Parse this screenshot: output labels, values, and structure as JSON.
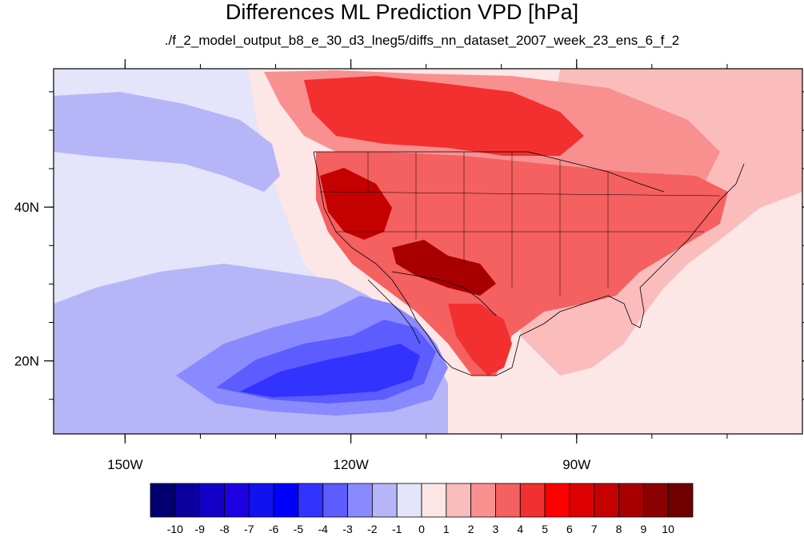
{
  "title": "Differences ML Prediction VPD [hPa]",
  "subtitle": "./f_2_model_output_b8_e_30_d3_lneg5/diffs_nn_dataset_2007_week_23_ens_6_f_2",
  "axes": {
    "x_ticks": [
      {
        "lon": -150,
        "label": "150W"
      },
      {
        "lon": -120,
        "label": "120W"
      },
      {
        "lon": -90,
        "label": "90W"
      }
    ],
    "y_ticks": [
      {
        "lat": 40,
        "label": "40N"
      },
      {
        "lat": 20,
        "label": "20N"
      }
    ],
    "lon_range": [
      -159.5,
      -60
    ],
    "lat_range": [
      10.5,
      58
    ]
  },
  "colorbar": {
    "levels": [
      "-10",
      "-9",
      "-8",
      "-7",
      "-6",
      "-5",
      "-4",
      "-3",
      "-2",
      "-1",
      "0",
      "1",
      "2",
      "3",
      "4",
      "5",
      "6",
      "7",
      "8",
      "9",
      "10"
    ],
    "colors": [
      "#020070",
      "#0a009e",
      "#1400c8",
      "#1e00e0",
      "#1212ee",
      "#0000ff",
      "#3333ff",
      "#5c5cff",
      "#8a8aff",
      "#b5b5f7",
      "#e4e4fa",
      "#fde6e6",
      "#fbbcbc",
      "#f89090",
      "#f56060",
      "#f23030",
      "#ff0000",
      "#dd0000",
      "#c40000",
      "#a80000",
      "#8b0000",
      "#700000"
    ]
  },
  "regions": [
    {
      "id": "pacific-background",
      "color": "#e4e4fa"
    },
    {
      "id": "north-pacific-blue",
      "color": "#b5b5f7"
    },
    {
      "id": "subtropical-pacific-blue",
      "color": "#b5b5f7"
    },
    {
      "id": "baja-offshore-blue",
      "color": "#8a8aff"
    },
    {
      "id": "baja-offshore-core",
      "color": "#5c5cff"
    },
    {
      "id": "baja-offshore-deep",
      "color": "#3333ff"
    },
    {
      "id": "canada-red",
      "color": "#f89090"
    },
    {
      "id": "canada-core",
      "color": "#f23030"
    },
    {
      "id": "us-red",
      "color": "#f56060"
    },
    {
      "id": "west-coast-deep",
      "color": "#c40000"
    },
    {
      "id": "southwest-deep",
      "color": "#a80000"
    },
    {
      "id": "mexico-red",
      "color": "#f23030"
    },
    {
      "id": "east-atlantic-pink",
      "color": "#fbbcbc"
    },
    {
      "id": "atlantic-pink",
      "color": "#fde6e6"
    }
  ]
}
